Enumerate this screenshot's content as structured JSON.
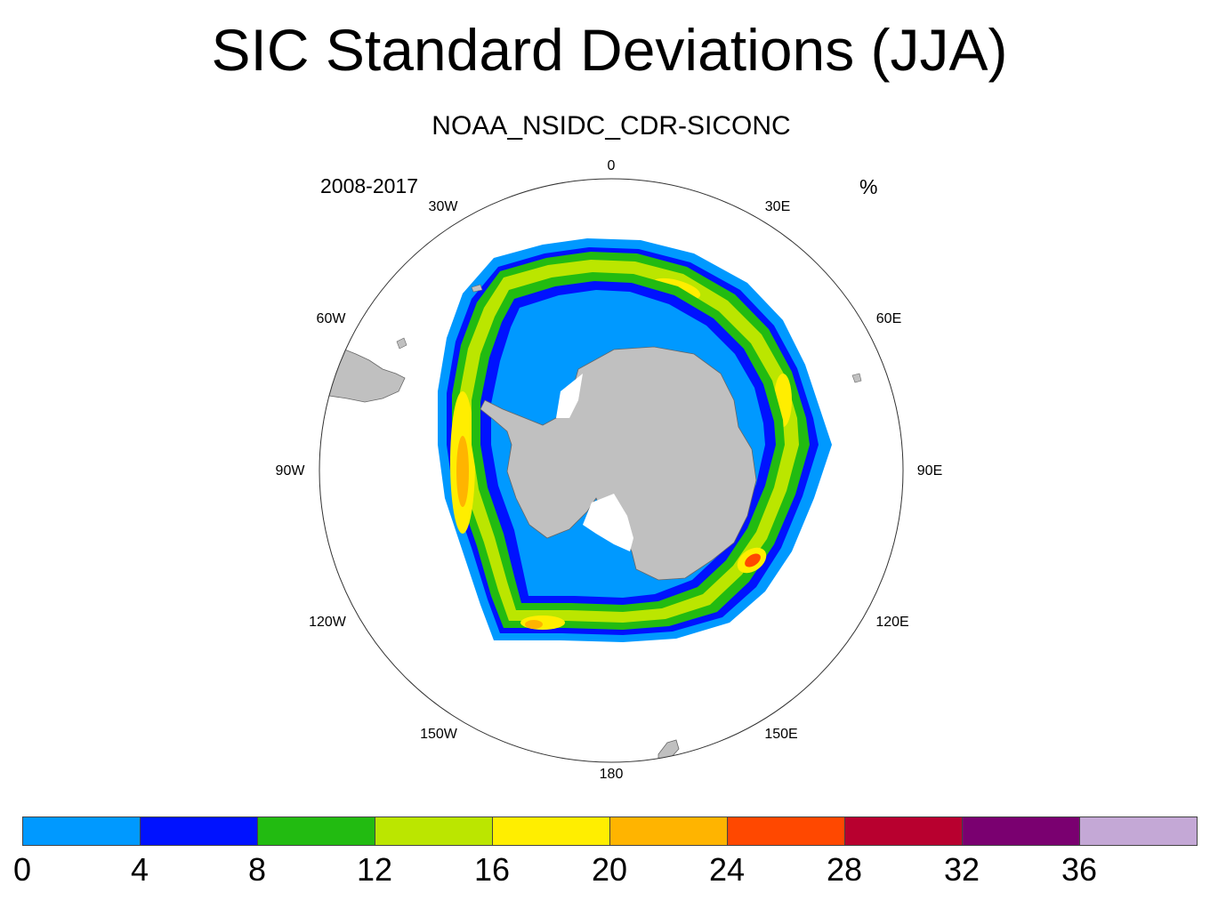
{
  "title": "SIC Standard Deviations (JJA)",
  "subtitle": "NOAA_NSIDC_CDR-SICONC",
  "period": "2008-2017",
  "units": "%",
  "map": {
    "projection": "south-polar-stereographic",
    "longitude_labels": [
      "0",
      "30E",
      "60E",
      "90E",
      "120E",
      "150E",
      "180",
      "150W",
      "120W",
      "90W",
      "60W",
      "30W"
    ],
    "land_color": "#c0c0c0",
    "ice_annotations": []
  },
  "colorbar": {
    "colors": [
      "#0099ff",
      "#0012ff",
      "#22bb11",
      "#bbe600",
      "#ffee00",
      "#ffb400",
      "#ff4800",
      "#b8002f",
      "#7a0070",
      "#c4a8d6"
    ],
    "labels": [
      "0",
      "4",
      "8",
      "12",
      "16",
      "20",
      "24",
      "28",
      "32",
      "36"
    ]
  }
}
